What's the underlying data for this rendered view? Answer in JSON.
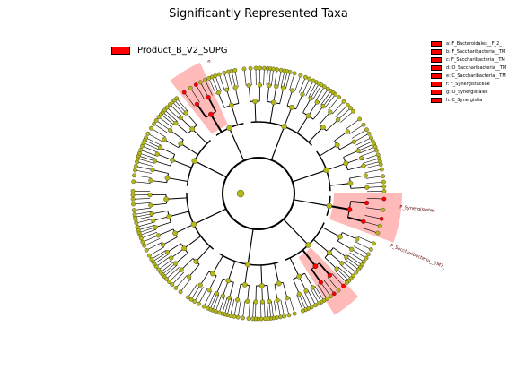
{
  "title": "Significantly Represented Taxa",
  "group_legend": {
    "label": "Product_B_V2_SUPG",
    "color": "#ff0000"
  },
  "clade_legend": [
    "a: F_Bacteroidales__F_2_",
    "b: F_Saccharibacteria__TM",
    "c: F_Saccharibacteria__TM",
    "d: O_Saccharibacteria__TM",
    "e: C_Saccharibacteria__TM",
    "f: F_Synergistaceae",
    "g: O_Synergistales",
    "h: C_Synergistia"
  ],
  "highlight_labels": [
    "a",
    "P_Synergistetes",
    "P_Saccharibacteria__TM7_"
  ],
  "colors": {
    "node_default": "#b5b81a",
    "node_highlight": "#ff0000",
    "shade": "#ff6666",
    "edge": "#000000"
  }
}
